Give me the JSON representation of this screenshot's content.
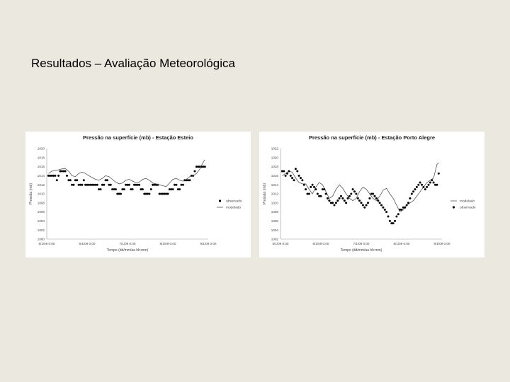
{
  "slide": {
    "title": "Resultados – Avaliação Meteorológica"
  },
  "chart_data": [
    {
      "type": "line",
      "title": "Pressão na superfície (mb) - Estação Esteio",
      "xlabel": "Tempo (dd/mm/aa hh:mm)",
      "ylabel": "Pressão (mb)",
      "ylim": [
        1000,
        1020
      ],
      "yticks": [
        "1000",
        "1002",
        "1004",
        "1006",
        "1008",
        "1010",
        "1012",
        "1014",
        "1016",
        "1018",
        "1020"
      ],
      "xlim": [
        0,
        96
      ],
      "xticks": [
        {
          "x": 0,
          "label": "5/1/09 0:00"
        },
        {
          "x": 24,
          "label": "6/1/09 0:00"
        },
        {
          "x": 48,
          "label": "7/1/09 0:00"
        },
        {
          "x": 72,
          "label": "8/1/09 0:00"
        },
        {
          "x": 96,
          "label": "9/1/09 0:00"
        }
      ],
      "legend": {
        "position": "right"
      },
      "series": [
        {
          "name": "observado",
          "style": "dots",
          "color": "#000000",
          "x": [
            1,
            2,
            3,
            4,
            5,
            6,
            7,
            8,
            9,
            10,
            11,
            12,
            13,
            14,
            15,
            16,
            17,
            18,
            19,
            20,
            21,
            22,
            23,
            24,
            25,
            26,
            27,
            28,
            29,
            30,
            31,
            32,
            33,
            34,
            35,
            36,
            37,
            38,
            39,
            40,
            41,
            42,
            43,
            44,
            45,
            46,
            47,
            48,
            49,
            50,
            51,
            52,
            53,
            54,
            55,
            56,
            57,
            58,
            59,
            60,
            61,
            62,
            63,
            64,
            65,
            66,
            67,
            68,
            69,
            70,
            71,
            72,
            73,
            74,
            75,
            76,
            77,
            78,
            79,
            80,
            81,
            82,
            83,
            84,
            85,
            86,
            87,
            88,
            89,
            90,
            91,
            92,
            93,
            94
          ],
          "y": [
            1014,
            1014,
            1014,
            1014,
            1014,
            1013,
            1014,
            1015,
            1015,
            1015,
            1015,
            1014,
            1013,
            1013,
            1012,
            1012,
            1013,
            1013,
            1012,
            1012,
            1012,
            1013,
            1012,
            1012,
            1012,
            1012,
            1012,
            1012,
            1012,
            1012,
            1011,
            1011,
            1012,
            1012,
            1013,
            1013,
            1012,
            1012,
            1011,
            1011,
            1011,
            1010,
            1010,
            1010,
            1011,
            1011,
            1012,
            1012,
            1012,
            1011,
            1011,
            1012,
            1012,
            1012,
            1012,
            1011,
            1011,
            1010,
            1010,
            1010,
            1010,
            1011,
            1012,
            1012,
            1012,
            1012,
            1010,
            1010,
            1010,
            1010,
            1010,
            1010,
            1011,
            1011,
            1011,
            1012,
            1012,
            1011,
            1011,
            1012,
            1012,
            1013,
            1013,
            1013,
            1013,
            1014,
            1014,
            1015,
            1016,
            1016,
            1016,
            1016,
            1016,
            1016
          ]
        },
        {
          "name": "modelado",
          "style": "line",
          "color": "#555555",
          "x": [
            1,
            3,
            5,
            7,
            9,
            11,
            13,
            15,
            17,
            19,
            21,
            23,
            25,
            27,
            29,
            31,
            33,
            35,
            37,
            39,
            41,
            43,
            45,
            47,
            49,
            51,
            53,
            55,
            57,
            59,
            61,
            63,
            65,
            67,
            69,
            71,
            73,
            75,
            77,
            79,
            81,
            83,
            85,
            87,
            89,
            91,
            93,
            94
          ],
          "y": [
            1014.5,
            1015,
            1015.2,
            1015.3,
            1015.5,
            1015.6,
            1015,
            1014,
            1013.8,
            1014.5,
            1014.8,
            1014.5,
            1014,
            1013.6,
            1013.2,
            1013,
            1013.4,
            1014,
            1013.8,
            1013.2,
            1012.6,
            1012.2,
            1012.4,
            1013,
            1013.2,
            1012.8,
            1012.5,
            1012.6,
            1013.2,
            1013.4,
            1013,
            1012.4,
            1012.2,
            1012,
            1011.8,
            1011.6,
            1012.4,
            1013.2,
            1013.4,
            1013,
            1012.8,
            1013.2,
            1013.8,
            1014,
            1014.5,
            1015.5,
            1017,
            1017.5
          ]
        }
      ]
    },
    {
      "type": "line",
      "title": "Pressão na superfície (mb) - Estação Porto Alegre",
      "xlabel": "Tempo (dd/mm/aa hh:mm)",
      "ylabel": "Pressão (mb)",
      "ylim": [
        1002,
        1022
      ],
      "yticks": [
        "1002",
        "1004",
        "1006",
        "1008",
        "1010",
        "1012",
        "1014",
        "1016",
        "1018",
        "1020",
        "1022"
      ],
      "xlim": [
        0,
        96
      ],
      "xticks": [
        {
          "x": 0,
          "label": "5/1/09 0:00"
        },
        {
          "x": 24,
          "label": "6/1/09 0:00"
        },
        {
          "x": 48,
          "label": "7/1/09 0:00"
        },
        {
          "x": 72,
          "label": "8/1/09 0:00"
        },
        {
          "x": 96,
          "label": "9/1/09 0:00"
        }
      ],
      "legend": {
        "position": "right"
      },
      "series": [
        {
          "name": "modelado",
          "style": "line",
          "color": "#555555",
          "x": [
            1,
            3,
            5,
            7,
            9,
            11,
            13,
            15,
            17,
            19,
            21,
            23,
            25,
            27,
            29,
            31,
            33,
            35,
            37,
            39,
            41,
            43,
            45,
            47,
            49,
            51,
            53,
            55,
            57,
            59,
            61,
            63,
            65,
            67,
            69,
            71,
            73,
            75,
            77,
            79,
            81,
            83,
            85,
            87,
            89,
            91,
            93,
            94
          ],
          "y": [
            1016,
            1016.5,
            1017,
            1016.8,
            1015.5,
            1014.5,
            1014.2,
            1014.2,
            1013,
            1012,
            1013.5,
            1014.5,
            1014,
            1012.5,
            1011,
            1011.5,
            1013,
            1014,
            1013.2,
            1012,
            1011,
            1010.5,
            1011,
            1012.5,
            1013.5,
            1013,
            1012,
            1011,
            1010.5,
            1011.5,
            1012.8,
            1013.2,
            1012,
            1011,
            1009.5,
            1008,
            1008.5,
            1009.5,
            1010,
            1010.5,
            1011.5,
            1012.5,
            1013.5,
            1014.5,
            1015,
            1015.5,
            1018.5,
            1018.8
          ]
        },
        {
          "name": "observado",
          "style": "dots",
          "color": "#000000",
          "x": [
            1,
            2,
            3,
            4,
            5,
            6,
            7,
            8,
            9,
            10,
            11,
            12,
            13,
            14,
            15,
            16,
            17,
            18,
            19,
            20,
            21,
            22,
            23,
            24,
            25,
            26,
            27,
            28,
            29,
            30,
            31,
            32,
            33,
            34,
            35,
            36,
            37,
            38,
            39,
            40,
            41,
            42,
            43,
            44,
            45,
            46,
            47,
            48,
            49,
            50,
            51,
            52,
            53,
            54,
            55,
            56,
            57,
            58,
            59,
            60,
            61,
            62,
            63,
            64,
            65,
            66,
            67,
            68,
            69,
            70,
            71,
            72,
            73,
            74,
            75,
            76,
            77,
            78,
            79,
            80,
            81,
            82,
            83,
            84,
            85,
            86,
            87,
            88,
            89,
            90,
            91,
            92,
            93,
            94
          ],
          "y": [
            1017,
            1017,
            1016,
            1016.5,
            1017,
            1016,
            1015.5,
            1015,
            1017.5,
            1017,
            1016,
            1015.5,
            1015,
            1014,
            1013,
            1012,
            1012,
            1013.5,
            1014,
            1013.5,
            1013,
            1012,
            1011.5,
            1011.5,
            1013,
            1013,
            1012,
            1011,
            1010.5,
            1010,
            1010,
            1009.5,
            1010,
            1010.5,
            1011,
            1011.5,
            1011,
            1010.5,
            1010,
            1011,
            1011.5,
            1012,
            1013,
            1012.5,
            1012,
            1011,
            1010.5,
            1010,
            1009.5,
            1009,
            1009.5,
            1010,
            1011,
            1012,
            1012,
            1011.5,
            1011,
            1010.5,
            1010,
            1009.5,
            1009,
            1008.5,
            1008,
            1007,
            1006,
            1005.5,
            1005.5,
            1006,
            1007,
            1007.5,
            1008.5,
            1008.5,
            1009,
            1009,
            1009.5,
            1010,
            1011,
            1012,
            1012.5,
            1013,
            1013.5,
            1014,
            1014.5,
            1014,
            1013.5,
            1013,
            1013.5,
            1014,
            1014.5,
            1015,
            1014.5,
            1014,
            1014,
            1016.5
          ]
        }
      ]
    }
  ]
}
